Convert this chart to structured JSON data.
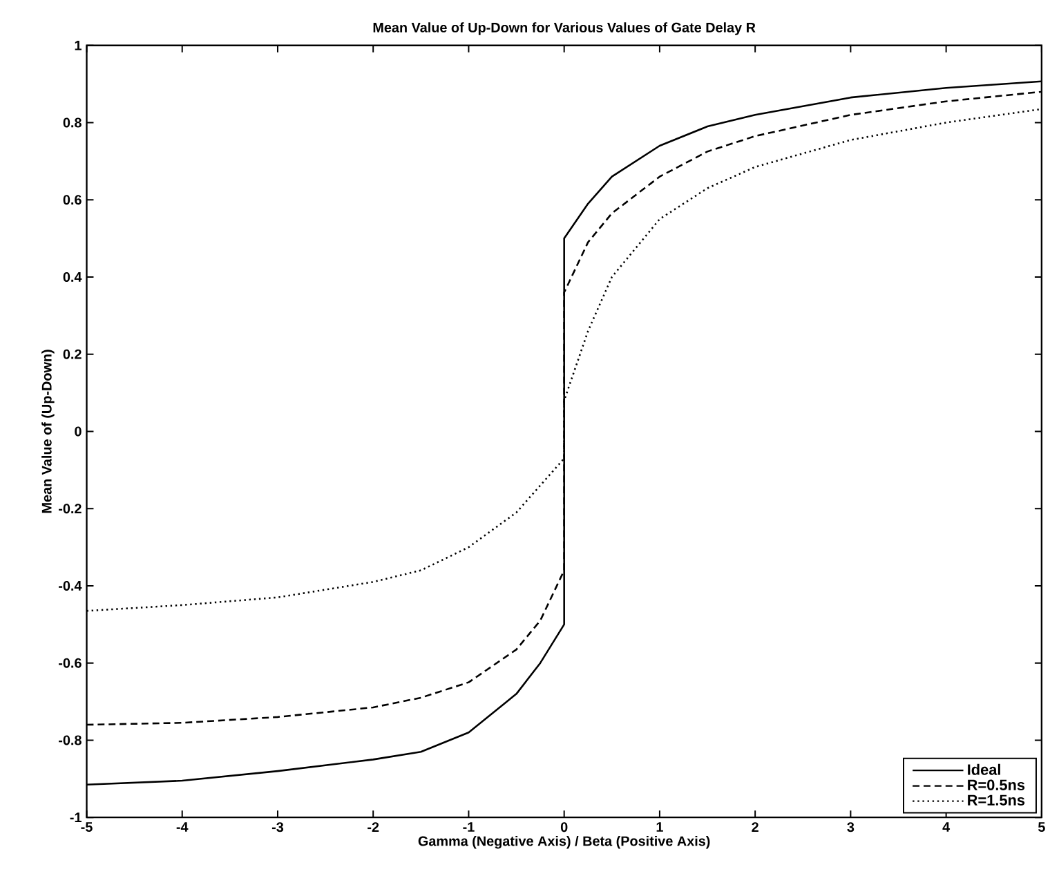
{
  "chart_data": {
    "type": "line",
    "title": "Mean Value of Up-Down for Various Values of Gate Delay R",
    "xlabel": "Gamma (Negative Axis) / Beta (Positive Axis)",
    "ylabel": "Mean Value of (Up-Down)",
    "xlim": [
      -5,
      5
    ],
    "ylim": [
      -1,
      1
    ],
    "xticks": [
      -5,
      -4,
      -3,
      -2,
      -1,
      0,
      1,
      2,
      3,
      4,
      5
    ],
    "yticks": [
      -1,
      -0.8,
      -0.6,
      -0.4,
      -0.2,
      0,
      0.2,
      0.4,
      0.6,
      0.8,
      1
    ],
    "legend": "bottom right",
    "series": [
      {
        "name": "Ideal",
        "color": "#000000",
        "line_style": "solid",
        "x": [
          -5,
          -4,
          -3,
          -2,
          -1.5,
          -1,
          -0.5,
          -0.25,
          0,
          0,
          0.25,
          0.5,
          1,
          1.5,
          2,
          3,
          4,
          5
        ],
        "values": [
          -0.915,
          -0.905,
          -0.88,
          -0.85,
          -0.83,
          -0.78,
          -0.68,
          -0.6,
          -0.5,
          0.5,
          0.59,
          0.66,
          0.74,
          0.79,
          0.82,
          0.865,
          0.89,
          0.907
        ]
      },
      {
        "name": "R=0.5ns",
        "color": "#000000",
        "line_style": "dashed",
        "x": [
          -5,
          -4,
          -3,
          -2,
          -1.5,
          -1,
          -0.5,
          -0.25,
          0,
          0,
          0.25,
          0.5,
          1,
          1.5,
          2,
          3,
          4,
          5
        ],
        "values": [
          -0.76,
          -0.755,
          -0.74,
          -0.715,
          -0.69,
          -0.65,
          -0.565,
          -0.49,
          -0.36,
          0.36,
          0.49,
          0.565,
          0.66,
          0.725,
          0.765,
          0.82,
          0.855,
          0.88
        ]
      },
      {
        "name": "R=1.5ns",
        "color": "#000000",
        "line_style": "dotted",
        "x": [
          -5,
          -4,
          -3,
          -2,
          -1.5,
          -1,
          -0.5,
          -0.25,
          0,
          0,
          0.25,
          0.5,
          1,
          1.5,
          2,
          3,
          4,
          5
        ],
        "values": [
          -0.465,
          -0.45,
          -0.43,
          -0.39,
          -0.36,
          -0.3,
          -0.21,
          -0.14,
          -0.07,
          0.08,
          0.26,
          0.4,
          0.55,
          0.63,
          0.685,
          0.755,
          0.8,
          0.835
        ]
      }
    ]
  }
}
